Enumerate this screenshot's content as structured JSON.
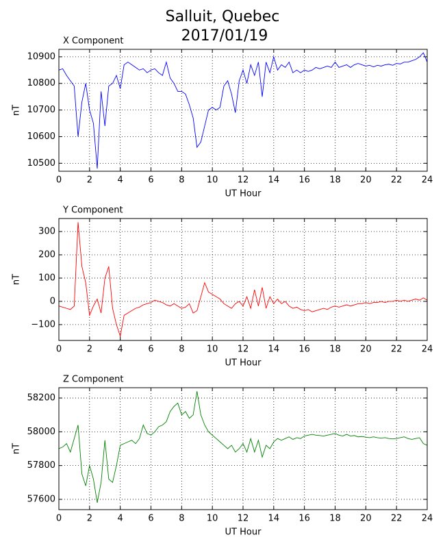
{
  "title": "Salluit, Quebec",
  "subtitle": "2017/01/19",
  "chart_data": [
    {
      "type": "line",
      "title": "X Component",
      "xlabel": "UT Hour",
      "ylabel": "nT",
      "x": [
        0,
        0.25,
        0.5,
        0.75,
        1,
        1.25,
        1.5,
        1.75,
        2,
        2.25,
        2.5,
        2.75,
        3,
        3.25,
        3.5,
        3.75,
        4,
        4.25,
        4.5,
        4.75,
        5,
        5.25,
        5.5,
        5.75,
        6,
        6.25,
        6.5,
        6.75,
        7,
        7.25,
        7.5,
        7.75,
        8,
        8.25,
        8.5,
        8.75,
        9,
        9.25,
        9.5,
        9.75,
        10,
        10.25,
        10.5,
        10.75,
        11,
        11.25,
        11.5,
        11.75,
        12,
        12.25,
        12.5,
        12.75,
        13,
        13.25,
        13.5,
        13.75,
        14,
        14.25,
        14.5,
        14.75,
        15,
        15.25,
        15.5,
        15.75,
        16,
        16.25,
        16.5,
        16.75,
        17,
        17.25,
        17.5,
        17.75,
        18,
        18.25,
        18.5,
        18.75,
        19,
        19.25,
        19.5,
        19.75,
        20,
        20.25,
        20.5,
        20.75,
        21,
        21.25,
        21.5,
        21.75,
        22,
        22.25,
        22.5,
        22.75,
        23,
        23.25,
        23.5,
        23.75,
        24
      ],
      "series": [
        {
          "color": "#0000ff",
          "values": [
            10850,
            10855,
            10830,
            10810,
            10790,
            10600,
            10730,
            10800,
            10700,
            10650,
            10480,
            10770,
            10640,
            10790,
            10800,
            10830,
            10780,
            10870,
            10880,
            10870,
            10860,
            10850,
            10855,
            10840,
            10850,
            10855,
            10840,
            10830,
            10880,
            10820,
            10800,
            10770,
            10770,
            10760,
            10720,
            10670,
            10560,
            10580,
            10640,
            10700,
            10710,
            10700,
            10710,
            10790,
            10810,
            10760,
            10690,
            10810,
            10850,
            10800,
            10870,
            10830,
            10880,
            10750,
            10880,
            10840,
            10900,
            10850,
            10870,
            10860,
            10880,
            10840,
            10850,
            10840,
            10850,
            10845,
            10850,
            10860,
            10855,
            10860,
            10865,
            10860,
            10880,
            10860,
            10865,
            10870,
            10860,
            10870,
            10875,
            10870,
            10865,
            10868,
            10862,
            10868,
            10865,
            10870,
            10872,
            10868,
            10875,
            10873,
            10880,
            10880,
            10885,
            10890,
            10900,
            10915,
            10880
          ]
        }
      ],
      "xlim": [
        0,
        24
      ],
      "xticks": [
        0,
        2,
        4,
        6,
        8,
        10,
        12,
        14,
        16,
        18,
        20,
        22,
        24
      ],
      "ylim": [
        10470,
        10928
      ],
      "yticks": [
        10500,
        10600,
        10700,
        10800,
        10900
      ],
      "grid": true
    },
    {
      "type": "line",
      "title": "Y Component",
      "xlabel": "UT Hour",
      "ylabel": "nT",
      "x": [
        0,
        0.25,
        0.5,
        0.75,
        1,
        1.25,
        1.5,
        1.75,
        2,
        2.25,
        2.5,
        2.75,
        3,
        3.25,
        3.5,
        3.75,
        4,
        4.25,
        4.5,
        4.75,
        5,
        5.25,
        5.5,
        5.75,
        6,
        6.25,
        6.5,
        6.75,
        7,
        7.25,
        7.5,
        7.75,
        8,
        8.25,
        8.5,
        8.75,
        9,
        9.25,
        9.5,
        9.75,
        10,
        10.25,
        10.5,
        10.75,
        11,
        11.25,
        11.5,
        11.75,
        12,
        12.25,
        12.5,
        12.75,
        13,
        13.25,
        13.5,
        13.75,
        14,
        14.25,
        14.5,
        14.75,
        15,
        15.25,
        15.5,
        15.75,
        16,
        16.25,
        16.5,
        16.75,
        17,
        17.25,
        17.5,
        17.75,
        18,
        18.25,
        18.5,
        18.75,
        19,
        19.25,
        19.5,
        19.75,
        20,
        20.25,
        20.5,
        20.75,
        21,
        21.25,
        21.5,
        21.75,
        22,
        22.25,
        22.5,
        22.75,
        23,
        23.25,
        23.5,
        23.75,
        24
      ],
      "series": [
        {
          "color": "#ff0000",
          "values": [
            -20,
            -25,
            -30,
            -35,
            -20,
            340,
            150,
            80,
            -60,
            -20,
            10,
            -50,
            100,
            150,
            -30,
            -100,
            -150,
            -60,
            -50,
            -40,
            -30,
            -25,
            -15,
            -10,
            -5,
            5,
            0,
            -5,
            -15,
            -20,
            -10,
            -20,
            -30,
            -25,
            -10,
            -50,
            -40,
            20,
            80,
            40,
            30,
            20,
            10,
            -10,
            -20,
            -30,
            -10,
            0,
            -20,
            20,
            -30,
            50,
            -20,
            60,
            -30,
            20,
            -10,
            10,
            -10,
            0,
            -20,
            -30,
            -25,
            -35,
            -40,
            -35,
            -45,
            -40,
            -35,
            -30,
            -35,
            -25,
            -20,
            -25,
            -20,
            -15,
            -20,
            -15,
            -10,
            -10,
            -5,
            -10,
            -5,
            -5,
            0,
            -5,
            0,
            0,
            5,
            0,
            5,
            0,
            5,
            10,
            5,
            15,
            5
          ]
        }
      ],
      "xlim": [
        0,
        24
      ],
      "xticks": [
        0,
        2,
        4,
        6,
        8,
        10,
        12,
        14,
        16,
        18,
        20,
        22,
        24
      ],
      "ylim": [
        -168,
        356
      ],
      "yticks": [
        {
          "value": -100,
          "label": "−100"
        },
        0,
        100,
        200,
        300
      ],
      "grid": true
    },
    {
      "type": "line",
      "title": "Z Component",
      "xlabel": "UT Hour",
      "ylabel": "nT",
      "x": [
        0,
        0.25,
        0.5,
        0.75,
        1,
        1.25,
        1.5,
        1.75,
        2,
        2.25,
        2.5,
        2.75,
        3,
        3.25,
        3.5,
        3.75,
        4,
        4.25,
        4.5,
        4.75,
        5,
        5.25,
        5.5,
        5.75,
        6,
        6.25,
        6.5,
        6.75,
        7,
        7.25,
        7.5,
        7.75,
        8,
        8.25,
        8.5,
        8.75,
        9,
        9.25,
        9.5,
        9.75,
        10,
        10.25,
        10.5,
        10.75,
        11,
        11.25,
        11.5,
        11.75,
        12,
        12.25,
        12.5,
        12.75,
        13,
        13.25,
        13.5,
        13.75,
        14,
        14.25,
        14.5,
        14.75,
        15,
        15.25,
        15.5,
        15.75,
        16,
        16.25,
        16.5,
        16.75,
        17,
        17.25,
        17.5,
        17.75,
        18,
        18.25,
        18.5,
        18.75,
        19,
        19.25,
        19.5,
        19.75,
        20,
        20.25,
        20.5,
        20.75,
        21,
        21.25,
        21.5,
        21.75,
        22,
        22.25,
        22.5,
        22.75,
        23,
        23.25,
        23.5,
        23.75,
        24
      ],
      "series": [
        {
          "color": "#008000",
          "values": [
            57900,
            57910,
            57930,
            57880,
            57960,
            58040,
            57750,
            57680,
            57800,
            57720,
            57580,
            57700,
            57950,
            57720,
            57700,
            57800,
            57920,
            57930,
            57940,
            57950,
            57930,
            57960,
            58040,
            57990,
            57980,
            58000,
            58030,
            58040,
            58060,
            58120,
            58150,
            58170,
            58100,
            58120,
            58080,
            58100,
            58240,
            58100,
            58040,
            58000,
            57980,
            57960,
            57940,
            57920,
            57900,
            57920,
            57880,
            57900,
            57930,
            57880,
            57960,
            57880,
            57950,
            57850,
            57920,
            57900,
            57940,
            57960,
            57950,
            57960,
            57970,
            57955,
            57965,
            57960,
            57975,
            57980,
            57985,
            57980,
            57978,
            57975,
            57980,
            57985,
            57990,
            57980,
            57975,
            57985,
            57975,
            57978,
            57970,
            57972,
            57968,
            57965,
            57970,
            57965,
            57962,
            57965,
            57960,
            57958,
            57960,
            57965,
            57970,
            57960,
            57955,
            57960,
            57965,
            57930,
            57920
          ]
        }
      ],
      "xlim": [
        0,
        24
      ],
      "xticks": [
        0,
        2,
        4,
        6,
        8,
        10,
        12,
        14,
        16,
        18,
        20,
        22,
        24
      ],
      "ylim": [
        57539,
        58261
      ],
      "yticks": [
        57600,
        57800,
        58000,
        58200
      ],
      "grid": true
    }
  ]
}
